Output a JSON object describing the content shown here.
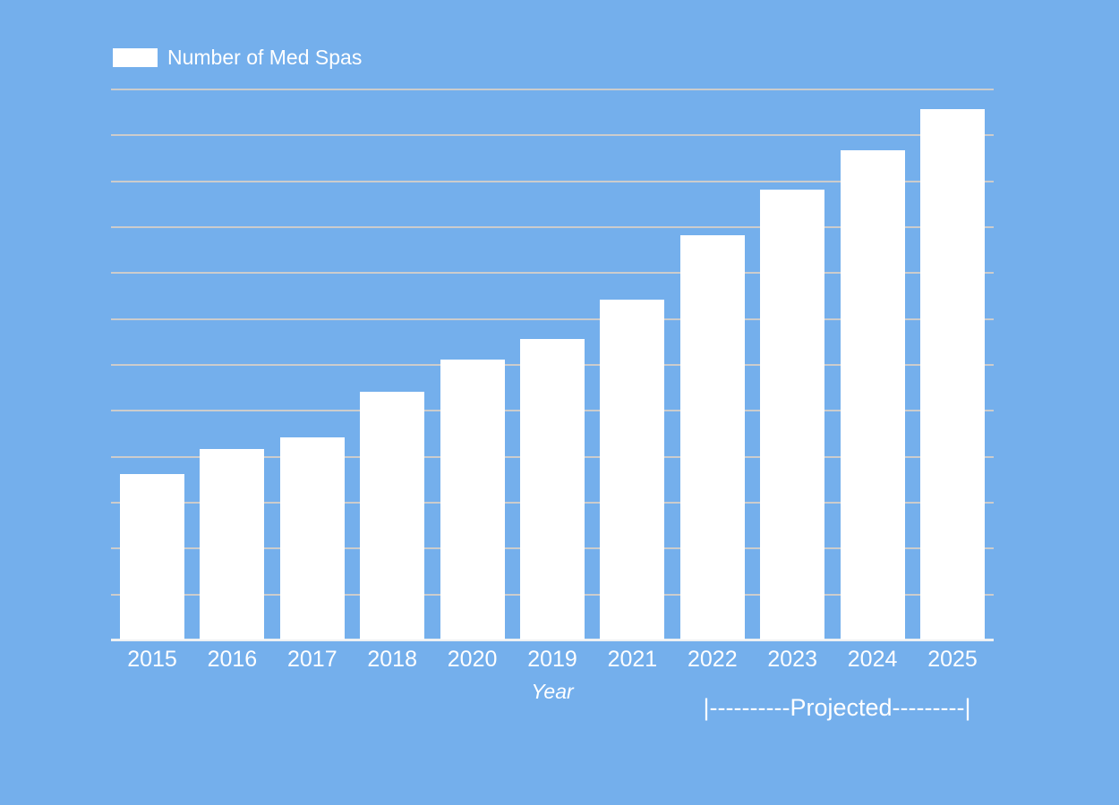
{
  "legend": {
    "label": "Number of Med Spas"
  },
  "x_axis": {
    "label": "Year"
  },
  "annotation": {
    "text": "|----------Projected---------|",
    "spans_categories": [
      "2022",
      "2023",
      "2024",
      "2025"
    ]
  },
  "colors": {
    "background": "#74afec",
    "bar": "#ffffff",
    "gridline": "#cccccc",
    "axis_line": "#eef1f3",
    "text": "#ffffff"
  },
  "chart_data": {
    "type": "bar",
    "title": "",
    "series_name": "Number of Med Spas",
    "categories": [
      "2015",
      "2016",
      "2017",
      "2018",
      "2020",
      "2019",
      "2021",
      "2022",
      "2023",
      "2024",
      "2025"
    ],
    "values": [
      3.6,
      4.15,
      4.4,
      5.4,
      6.1,
      6.55,
      7.4,
      8.8,
      9.8,
      10.65,
      11.55
    ],
    "value_units": "gridline intervals (y-axis has no tick labels)",
    "xlabel": "Year",
    "ylabel": "",
    "ylim": [
      0,
      12
    ],
    "gridline_count": 12,
    "grid": true,
    "legend_position": "top-left",
    "bar_color": "#ffffff",
    "background_color": "#74afec",
    "annotation": "|----------Projected---------|"
  }
}
